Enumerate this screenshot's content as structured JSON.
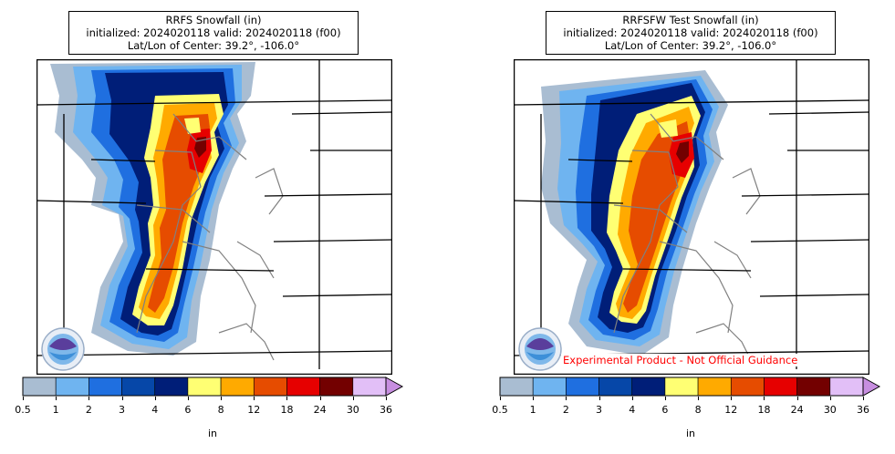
{
  "panels": [
    {
      "title": "RRFS Snowfall (in)",
      "init_line": "initialized: 2024020118 valid: 2024020118 (f00)",
      "center_line": "Lat/Lon of Center: 39.2°, -106.0°",
      "logo": "noaa-logo",
      "experimental_note": ""
    },
    {
      "title": "RRFSFW Test Snowfall (in)",
      "init_line": "initialized: 2024020118 valid: 2024020118 (f00)",
      "center_line": "Lat/Lon of Center: 39.2°, -106.0°",
      "logo": "noaa-logo",
      "experimental_note": "Experimental Product - Not Official Guidance"
    }
  ],
  "colorbar": {
    "unit": "in",
    "ticks": [
      "0.5",
      "1",
      "2",
      "3",
      "4",
      "6",
      "8",
      "12",
      "18",
      "24",
      "30",
      "36"
    ],
    "colors": [
      "#a9bdd2",
      "#6fb4f0",
      "#1f6fe0",
      "#0647a8",
      "#001e78",
      "#ffff73",
      "#ffaa00",
      "#e64c00",
      "#e60000",
      "#730000",
      "#e2bff7"
    ],
    "extend_color": "#c78ee0"
  },
  "colors": {
    "state_border": "#000000",
    "county_border": "#808080",
    "experimental_text": "#ff0000"
  }
}
